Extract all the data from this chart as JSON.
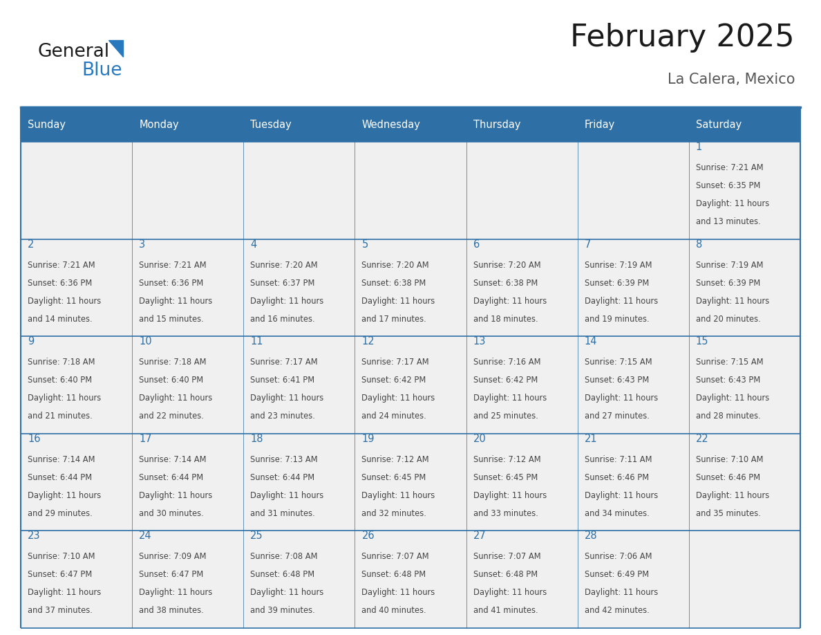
{
  "title": "February 2025",
  "subtitle": "La Calera, Mexico",
  "days_of_week": [
    "Sunday",
    "Monday",
    "Tuesday",
    "Wednesday",
    "Thursday",
    "Friday",
    "Saturday"
  ],
  "header_bg": "#2E6FA5",
  "header_text": "#FFFFFF",
  "border_color": "#2E6FA5",
  "day_num_color": "#2E6FA5",
  "cell_text_color": "#444444",
  "title_color": "#1a1a1a",
  "subtitle_color": "#555555",
  "logo_general_color": "#1a1a1a",
  "logo_blue_color": "#2878BE",
  "cell_bg": "#F0F0F0",
  "weeks": [
    [
      {
        "day": null,
        "sunrise": null,
        "sunset": null,
        "daylight_line1": null,
        "daylight_line2": null
      },
      {
        "day": null,
        "sunrise": null,
        "sunset": null,
        "daylight_line1": null,
        "daylight_line2": null
      },
      {
        "day": null,
        "sunrise": null,
        "sunset": null,
        "daylight_line1": null,
        "daylight_line2": null
      },
      {
        "day": null,
        "sunrise": null,
        "sunset": null,
        "daylight_line1": null,
        "daylight_line2": null
      },
      {
        "day": null,
        "sunrise": null,
        "sunset": null,
        "daylight_line1": null,
        "daylight_line2": null
      },
      {
        "day": null,
        "sunrise": null,
        "sunset": null,
        "daylight_line1": null,
        "daylight_line2": null
      },
      {
        "day": 1,
        "sunrise": "7:21 AM",
        "sunset": "6:35 PM",
        "daylight_line1": "Daylight: 11 hours",
        "daylight_line2": "and 13 minutes."
      }
    ],
    [
      {
        "day": 2,
        "sunrise": "7:21 AM",
        "sunset": "6:36 PM",
        "daylight_line1": "Daylight: 11 hours",
        "daylight_line2": "and 14 minutes."
      },
      {
        "day": 3,
        "sunrise": "7:21 AM",
        "sunset": "6:36 PM",
        "daylight_line1": "Daylight: 11 hours",
        "daylight_line2": "and 15 minutes."
      },
      {
        "day": 4,
        "sunrise": "7:20 AM",
        "sunset": "6:37 PM",
        "daylight_line1": "Daylight: 11 hours",
        "daylight_line2": "and 16 minutes."
      },
      {
        "day": 5,
        "sunrise": "7:20 AM",
        "sunset": "6:38 PM",
        "daylight_line1": "Daylight: 11 hours",
        "daylight_line2": "and 17 minutes."
      },
      {
        "day": 6,
        "sunrise": "7:20 AM",
        "sunset": "6:38 PM",
        "daylight_line1": "Daylight: 11 hours",
        "daylight_line2": "and 18 minutes."
      },
      {
        "day": 7,
        "sunrise": "7:19 AM",
        "sunset": "6:39 PM",
        "daylight_line1": "Daylight: 11 hours",
        "daylight_line2": "and 19 minutes."
      },
      {
        "day": 8,
        "sunrise": "7:19 AM",
        "sunset": "6:39 PM",
        "daylight_line1": "Daylight: 11 hours",
        "daylight_line2": "and 20 minutes."
      }
    ],
    [
      {
        "day": 9,
        "sunrise": "7:18 AM",
        "sunset": "6:40 PM",
        "daylight_line1": "Daylight: 11 hours",
        "daylight_line2": "and 21 minutes."
      },
      {
        "day": 10,
        "sunrise": "7:18 AM",
        "sunset": "6:40 PM",
        "daylight_line1": "Daylight: 11 hours",
        "daylight_line2": "and 22 minutes."
      },
      {
        "day": 11,
        "sunrise": "7:17 AM",
        "sunset": "6:41 PM",
        "daylight_line1": "Daylight: 11 hours",
        "daylight_line2": "and 23 minutes."
      },
      {
        "day": 12,
        "sunrise": "7:17 AM",
        "sunset": "6:42 PM",
        "daylight_line1": "Daylight: 11 hours",
        "daylight_line2": "and 24 minutes."
      },
      {
        "day": 13,
        "sunrise": "7:16 AM",
        "sunset": "6:42 PM",
        "daylight_line1": "Daylight: 11 hours",
        "daylight_line2": "and 25 minutes."
      },
      {
        "day": 14,
        "sunrise": "7:15 AM",
        "sunset": "6:43 PM",
        "daylight_line1": "Daylight: 11 hours",
        "daylight_line2": "and 27 minutes."
      },
      {
        "day": 15,
        "sunrise": "7:15 AM",
        "sunset": "6:43 PM",
        "daylight_line1": "Daylight: 11 hours",
        "daylight_line2": "and 28 minutes."
      }
    ],
    [
      {
        "day": 16,
        "sunrise": "7:14 AM",
        "sunset": "6:44 PM",
        "daylight_line1": "Daylight: 11 hours",
        "daylight_line2": "and 29 minutes."
      },
      {
        "day": 17,
        "sunrise": "7:14 AM",
        "sunset": "6:44 PM",
        "daylight_line1": "Daylight: 11 hours",
        "daylight_line2": "and 30 minutes."
      },
      {
        "day": 18,
        "sunrise": "7:13 AM",
        "sunset": "6:44 PM",
        "daylight_line1": "Daylight: 11 hours",
        "daylight_line2": "and 31 minutes."
      },
      {
        "day": 19,
        "sunrise": "7:12 AM",
        "sunset": "6:45 PM",
        "daylight_line1": "Daylight: 11 hours",
        "daylight_line2": "and 32 minutes."
      },
      {
        "day": 20,
        "sunrise": "7:12 AM",
        "sunset": "6:45 PM",
        "daylight_line1": "Daylight: 11 hours",
        "daylight_line2": "and 33 minutes."
      },
      {
        "day": 21,
        "sunrise": "7:11 AM",
        "sunset": "6:46 PM",
        "daylight_line1": "Daylight: 11 hours",
        "daylight_line2": "and 34 minutes."
      },
      {
        "day": 22,
        "sunrise": "7:10 AM",
        "sunset": "6:46 PM",
        "daylight_line1": "Daylight: 11 hours",
        "daylight_line2": "and 35 minutes."
      }
    ],
    [
      {
        "day": 23,
        "sunrise": "7:10 AM",
        "sunset": "6:47 PM",
        "daylight_line1": "Daylight: 11 hours",
        "daylight_line2": "and 37 minutes."
      },
      {
        "day": 24,
        "sunrise": "7:09 AM",
        "sunset": "6:47 PM",
        "daylight_line1": "Daylight: 11 hours",
        "daylight_line2": "and 38 minutes."
      },
      {
        "day": 25,
        "sunrise": "7:08 AM",
        "sunset": "6:48 PM",
        "daylight_line1": "Daylight: 11 hours",
        "daylight_line2": "and 39 minutes."
      },
      {
        "day": 26,
        "sunrise": "7:07 AM",
        "sunset": "6:48 PM",
        "daylight_line1": "Daylight: 11 hours",
        "daylight_line2": "and 40 minutes."
      },
      {
        "day": 27,
        "sunrise": "7:07 AM",
        "sunset": "6:48 PM",
        "daylight_line1": "Daylight: 11 hours",
        "daylight_line2": "and 41 minutes."
      },
      {
        "day": 28,
        "sunrise": "7:06 AM",
        "sunset": "6:49 PM",
        "daylight_line1": "Daylight: 11 hours",
        "daylight_line2": "and 42 minutes."
      },
      {
        "day": null,
        "sunrise": null,
        "sunset": null,
        "daylight_line1": null,
        "daylight_line2": null
      }
    ]
  ]
}
